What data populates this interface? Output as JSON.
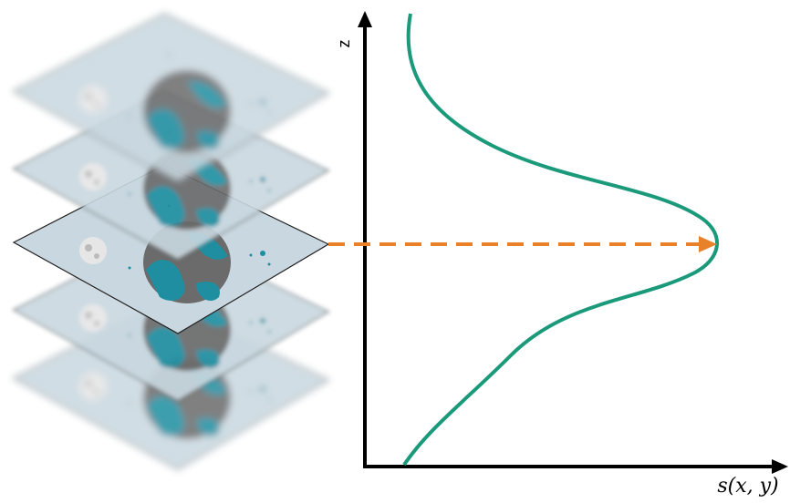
{
  "axes": {
    "y_label": "z",
    "x_label": "s(x, y)"
  }
}
